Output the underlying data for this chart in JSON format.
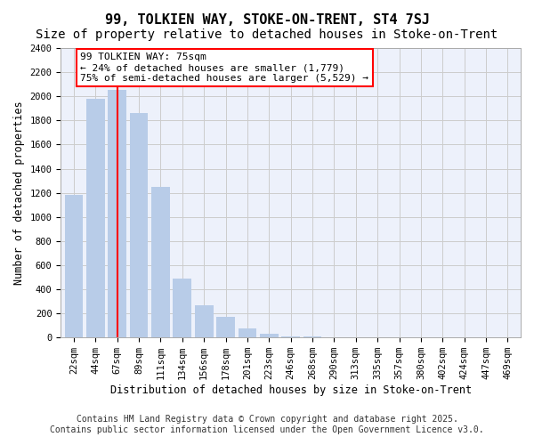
{
  "title": "99, TOLKIEN WAY, STOKE-ON-TRENT, ST4 7SJ",
  "subtitle": "Size of property relative to detached houses in Stoke-on-Trent",
  "xlabel": "Distribution of detached houses by size in Stoke-on-Trent",
  "ylabel": "Number of detached properties",
  "categories": [
    "22sqm",
    "44sqm",
    "67sqm",
    "89sqm",
    "111sqm",
    "134sqm",
    "156sqm",
    "178sqm",
    "201sqm",
    "223sqm",
    "246sqm",
    "268sqm",
    "290sqm",
    "313sqm",
    "335sqm",
    "357sqm",
    "380sqm",
    "402sqm",
    "424sqm",
    "447sqm",
    "469sqm"
  ],
  "values": [
    1180,
    1980,
    2050,
    1860,
    1250,
    490,
    270,
    175,
    75,
    30,
    12,
    8,
    5,
    3,
    2,
    1,
    1,
    0,
    0,
    0,
    0
  ],
  "bar_color": "#b8cce8",
  "vline_index": 2,
  "ylim": [
    0,
    2400
  ],
  "yticks": [
    0,
    200,
    400,
    600,
    800,
    1000,
    1200,
    1400,
    1600,
    1800,
    2000,
    2200,
    2400
  ],
  "annotation_title": "99 TOLKIEN WAY: 75sqm",
  "annotation_line1": "← 24% of detached houses are smaller (1,779)",
  "annotation_line2": "75% of semi-detached houses are larger (5,529) →",
  "footer_line1": "Contains HM Land Registry data © Crown copyright and database right 2025.",
  "footer_line2": "Contains public sector information licensed under the Open Government Licence v3.0.",
  "bg_color": "#edf1fb",
  "grid_color": "#cccccc",
  "title_fontsize": 11,
  "subtitle_fontsize": 10,
  "axis_label_fontsize": 8.5,
  "tick_fontsize": 7.5,
  "annotation_fontsize": 8,
  "footer_fontsize": 7
}
